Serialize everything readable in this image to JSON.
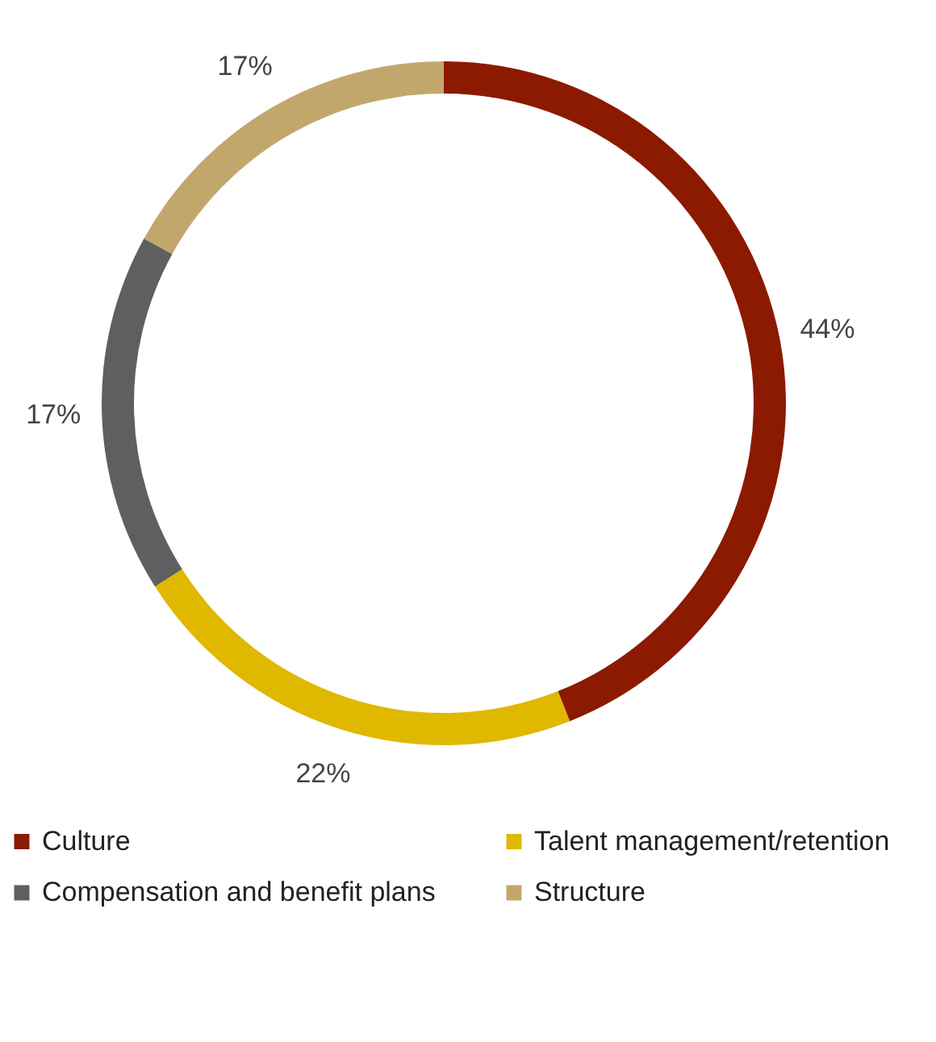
{
  "chart_data": {
    "type": "donut",
    "categories": [
      "Culture",
      "Talent management/retention",
      "Compensation and benefit plans",
      "Structure"
    ],
    "values": [
      44,
      22,
      17,
      17
    ],
    "colors": [
      "#8b1a00",
      "#e0b800",
      "#5f5f5f",
      "#c2a76d"
    ],
    "value_labels": [
      "44%",
      "22%",
      "17%",
      "17%"
    ],
    "legend": "bottom"
  }
}
